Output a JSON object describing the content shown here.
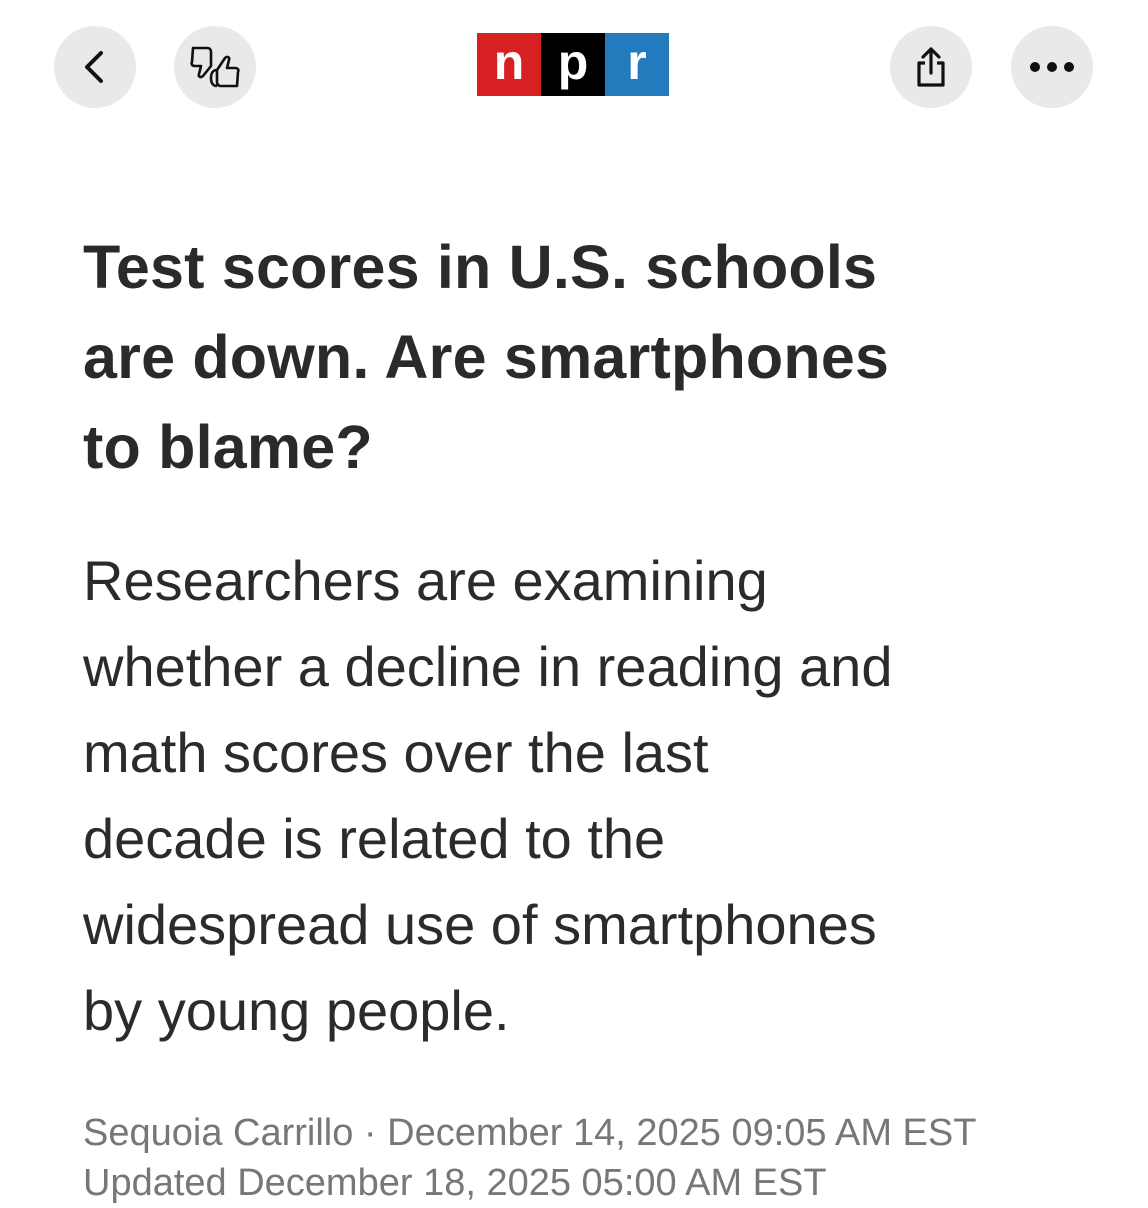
{
  "toolbar": {
    "back_icon": "chevron-left-icon",
    "feedback_icon": "thumbs-down-up-icon",
    "share_icon": "share-icon",
    "more_icon": "ellipsis-icon"
  },
  "logo": {
    "letters": [
      "n",
      "p",
      "r"
    ],
    "colors": [
      "#d62021",
      "#000000",
      "#237bbd"
    ]
  },
  "article": {
    "headline_lines": [
      "Test scores in U.S. schools",
      "are down. Are smartphones",
      "to blame?"
    ],
    "dek_lines": [
      "Researchers are examining",
      "whether a decline in reading and",
      "math scores over the last",
      "decade is related to the",
      "widespread use of smartphones",
      "by young people."
    ],
    "byline": "Sequoia Carrillo · December 14, 2025 09:05 AM EST",
    "updated": "Updated December 18, 2025 05:00 AM EST"
  }
}
